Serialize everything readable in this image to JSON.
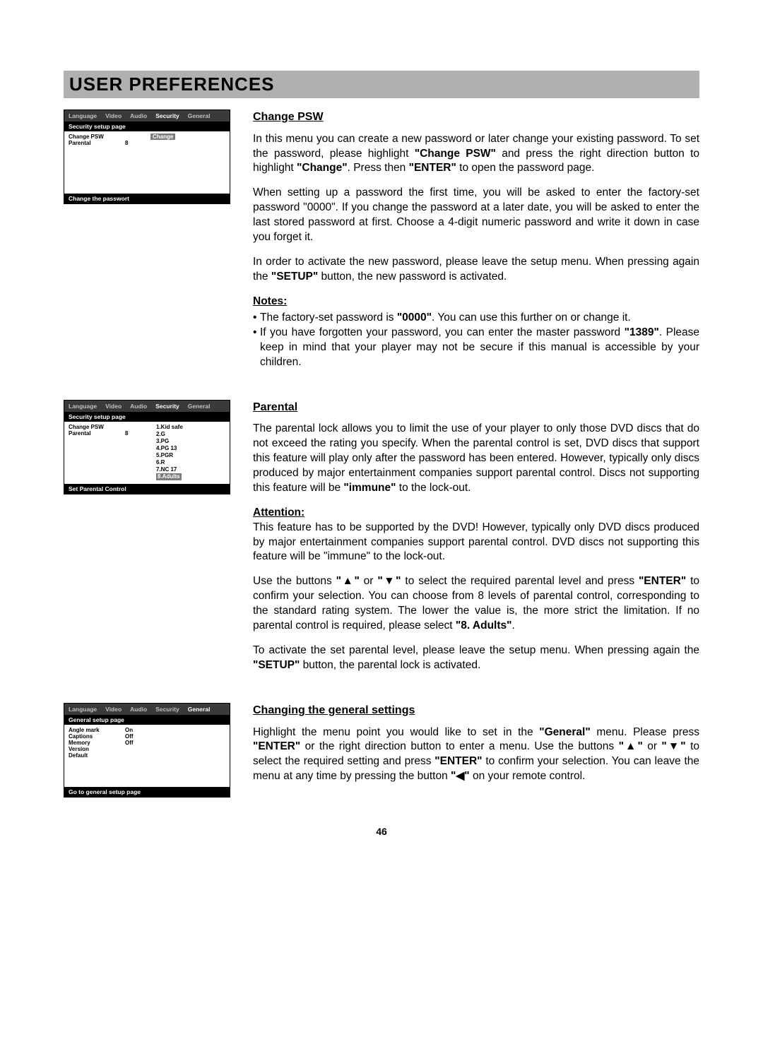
{
  "pageTitle": "USER PREFERENCES",
  "pageNumber": "46",
  "menus": {
    "tabs": [
      "Language",
      "Video",
      "Audio",
      "Security",
      "General"
    ],
    "security": {
      "activeTab": "Security",
      "subtitle": "Security setup page",
      "row1": {
        "label": "Change PSW",
        "value": "",
        "opt": "Change"
      },
      "row2": {
        "label": "Parental",
        "value": "8",
        "opt": ""
      },
      "footer1": "Change the passwort"
    },
    "parental": {
      "activeTab": "Security",
      "subtitle": "Security setup page",
      "row1": {
        "label": "Change PSW",
        "value": "",
        "opt": ""
      },
      "row2": {
        "label": "Parental",
        "value": "8",
        "opt": ""
      },
      "ratings": [
        "1.Kid safe",
        "2.G",
        "3.PG",
        "4.PG 13",
        "5.PGR",
        "6.R",
        "7.NC 17",
        "8.Adults"
      ],
      "footer": "Set Parental Control"
    },
    "general": {
      "activeTab": "General",
      "subtitle": "General setup page",
      "rows": [
        {
          "label": "Angle mark",
          "value": "On"
        },
        {
          "label": "Captions",
          "value": "Off"
        },
        {
          "label": "Memory",
          "value": "Off"
        },
        {
          "label": "Version",
          "value": ""
        },
        {
          "label": "Default",
          "value": ""
        }
      ],
      "footer": "Go to general setup page"
    }
  },
  "changePSW": {
    "heading": "Change PSW",
    "p1a": "In this menu you can create a new password or later change your existing password. To set the password, please highlight ",
    "p1b": "\"Change PSW\"",
    "p1c": " and press the right direction button to highlight ",
    "p1d": "\"Change\"",
    "p1e": ". Press then ",
    "p1f": "\"ENTER\"",
    "p1g": " to open the password page.",
    "p2": "When setting up a password the first time, you will be asked to enter the factory-set password \"0000\".  If you change the password at a later date, you will be asked to enter the last stored password at first. Choose a 4-digit numeric password and write it down in case you forget it.",
    "p3a": "In order to activate the new password, please leave the setup menu. When pressing again the ",
    "p3b": "\"SETUP\"",
    "p3c": " button, the new password is activated.",
    "notesH": "Notes:",
    "n1a": "The factory-set password is ",
    "n1b": "\"0000\"",
    "n1c": ". You can use this further on or change it.",
    "n2a": "If you have forgotten your password, you can enter the master password ",
    "n2b": "\"1389\"",
    "n2c": ". Please keep in mind that your player may not be secure if this manual is accessible by your children."
  },
  "parental": {
    "heading": "Parental",
    "p1a": "The parental lock allows you to limit the use of your player to only those DVD discs that do not exceed the rating you specify. When the parental control is set, DVD discs that support this feature will play only after the password has been entered. However, typically only discs produced by major entertainment companies support parental control. Discs not supporting this feature will be ",
    "p1b": "\"immune\"",
    "p1c": " to the lock-out.",
    "attnH": "Attention:",
    "attnP": "This feature has to be supported by the DVD! However, typically only DVD discs produced by major entertainment companies support parental control. DVD discs not supporting this feature will be \"immune\" to the lock-out.",
    "p2a": "Use the buttons ",
    "p2b": "\"▲\"",
    "p2c": " or ",
    "p2d": "\"▼\"",
    "p2e": " to select the required parental level and press ",
    "p2f": "\"ENTER\"",
    "p2g": " to confirm your selection. You can choose from 8 levels of parental control, corresponding to the standard rating system. The lower the value is, the more strict the limitation. If no parental control is required, please select ",
    "p2h": "\"8. Adults\"",
    "p2i": ".",
    "p3a": "To activate the set parental level, please leave the setup menu. When pressing again the ",
    "p3b": "\"SETUP\"",
    "p3c": " button, the parental lock is activated."
  },
  "general": {
    "heading": "Changing the general settings",
    "p1a": "Highlight the menu point you would like to set in the ",
    "p1b": "\"General\"",
    "p1c": " menu. Please press ",
    "p1d": "\"ENTER\"",
    "p1e": " or the right direction button to enter a menu. Use the buttons ",
    "p1f": "\"▲\"",
    "p1g": " or ",
    "p1h": "\"▼\"",
    "p1i": " to select the required setting and press ",
    "p1j": "\"ENTER\"",
    "p1k": " to confirm your selection. You can leave the menu at any time by pressing the button ",
    "p1l": "\"◀\"",
    "p1m": " on your remote control."
  }
}
